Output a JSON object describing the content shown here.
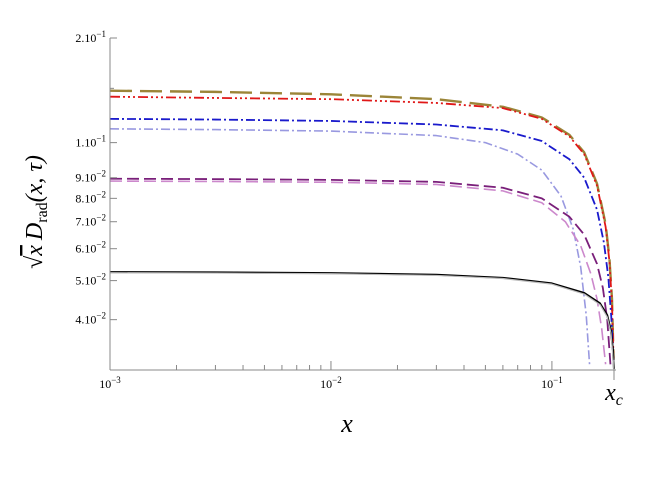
{
  "chart_data": {
    "type": "line",
    "xscale": "log",
    "yscale": "log",
    "xlim": [
      0.001,
      0.195
    ],
    "ylim": [
      0.03,
      0.2
    ],
    "xlabel": "x",
    "ylabel": "√x D_rad(x, τ)",
    "ylabel_parts": {
      "root": "√",
      "x": "x",
      "d": "D",
      "sub": "rad",
      "args": "(x, τ)"
    },
    "x_special_tick": {
      "value": 0.191,
      "label_main": "x",
      "label_sub": "c"
    },
    "xticks": [
      {
        "value": 0.001,
        "mant": "10",
        "exp": "−3"
      },
      {
        "value": 0.01,
        "mant": "10",
        "exp": "−2"
      },
      {
        "value": 0.1,
        "mant": "10",
        "exp": "−1"
      }
    ],
    "yticks": [
      {
        "value": 0.2,
        "mant": "2.10",
        "exp": "−1"
      },
      {
        "value": 0.11,
        "mant": "1.10",
        "exp": "−1"
      },
      {
        "value": 0.09,
        "mant": "9.10",
        "exp": "−2"
      },
      {
        "value": 0.08,
        "mant": "8.10",
        "exp": "−2"
      },
      {
        "value": 0.07,
        "mant": "7.10",
        "exp": "−2"
      },
      {
        "value": 0.06,
        "mant": "6.10",
        "exp": "−2"
      },
      {
        "value": 0.05,
        "mant": "5.10",
        "exp": "−2"
      },
      {
        "value": 0.04,
        "mant": "4.10",
        "exp": "−2"
      }
    ],
    "grid": false,
    "legend": "none",
    "series": [
      {
        "color": "#9b8538",
        "dash": "22 8",
        "width": 2.4,
        "x": [
          0.001,
          0.003,
          0.01,
          0.03,
          0.06,
          0.09,
          0.12,
          0.14,
          0.16,
          0.175,
          0.182,
          0.187,
          0.19
        ],
        "y": [
          0.148,
          0.147,
          0.145,
          0.141,
          0.135,
          0.127,
          0.115,
          0.104,
          0.087,
          0.069,
          0.057,
          0.045,
          0.032
        ]
      },
      {
        "color": "#e01818",
        "dash": "10 3 2 3 2 3 2 3",
        "width": 1.8,
        "x": [
          0.001,
          0.003,
          0.01,
          0.03,
          0.06,
          0.09,
          0.12,
          0.14,
          0.16,
          0.175,
          0.182,
          0.187,
          0.19
        ],
        "y": [
          0.143,
          0.142,
          0.141,
          0.138,
          0.134,
          0.126,
          0.114,
          0.103,
          0.086,
          0.068,
          0.056,
          0.044,
          0.032
        ]
      },
      {
        "color": "#1a1acc",
        "dash": "9 3 2 3",
        "width": 1.8,
        "x": [
          0.001,
          0.003,
          0.01,
          0.03,
          0.06,
          0.09,
          0.12,
          0.14,
          0.16,
          0.172,
          0.18,
          0.186,
          0.19
        ],
        "y": [
          0.126,
          0.1255,
          0.1245,
          0.122,
          0.118,
          0.111,
          0.1,
          0.09,
          0.075,
          0.062,
          0.051,
          0.04,
          0.031
        ]
      },
      {
        "color": "#9999e0",
        "dash": "9 3 2 3",
        "width": 1.6,
        "x": [
          0.001,
          0.003,
          0.01,
          0.03,
          0.05,
          0.07,
          0.09,
          0.11,
          0.125,
          0.135,
          0.143,
          0.148
        ],
        "y": [
          0.119,
          0.1185,
          0.1175,
          0.1145,
          0.11,
          0.103,
          0.094,
          0.081,
          0.067,
          0.054,
          0.041,
          0.031
        ]
      },
      {
        "color": "#7a1f7a",
        "dash": "12 5",
        "width": 1.8,
        "x": [
          0.001,
          0.003,
          0.01,
          0.03,
          0.06,
          0.09,
          0.12,
          0.14,
          0.16,
          0.17,
          0.178,
          0.184
        ],
        "y": [
          0.0895,
          0.0893,
          0.0889,
          0.0879,
          0.085,
          0.08,
          0.072,
          0.065,
          0.055,
          0.048,
          0.04,
          0.031
        ]
      },
      {
        "color": "#cc88cc",
        "dash": "12 5",
        "width": 1.6,
        "x": [
          0.001,
          0.003,
          0.01,
          0.03,
          0.06,
          0.09,
          0.115,
          0.135,
          0.15,
          0.16,
          0.168,
          0.175
        ],
        "y": [
          0.0883,
          0.0881,
          0.0877,
          0.0866,
          0.0835,
          0.078,
          0.07,
          0.061,
          0.052,
          0.045,
          0.038,
          0.031
        ]
      },
      {
        "color": "#000000",
        "dash": "",
        "width": 2.0,
        "x": [
          0.001,
          0.003,
          0.01,
          0.03,
          0.06,
          0.1,
          0.14,
          0.165,
          0.178,
          0.185,
          0.189,
          0.191
        ],
        "y": [
          0.0525,
          0.0524,
          0.0522,
          0.0517,
          0.0508,
          0.0492,
          0.0466,
          0.0439,
          0.041,
          0.0375,
          0.0335,
          0.0302
        ]
      },
      {
        "color": "#bbbbbb",
        "dash": "",
        "width": 1.2,
        "x": [
          0.001,
          0.003,
          0.01,
          0.03,
          0.06,
          0.1,
          0.14,
          0.165,
          0.178,
          0.185,
          0.188,
          0.19
        ],
        "y": [
          0.0523,
          0.0522,
          0.052,
          0.0515,
          0.0506,
          0.049,
          0.0463,
          0.0436,
          0.0406,
          0.0371,
          0.0334,
          0.0302
        ]
      }
    ]
  }
}
